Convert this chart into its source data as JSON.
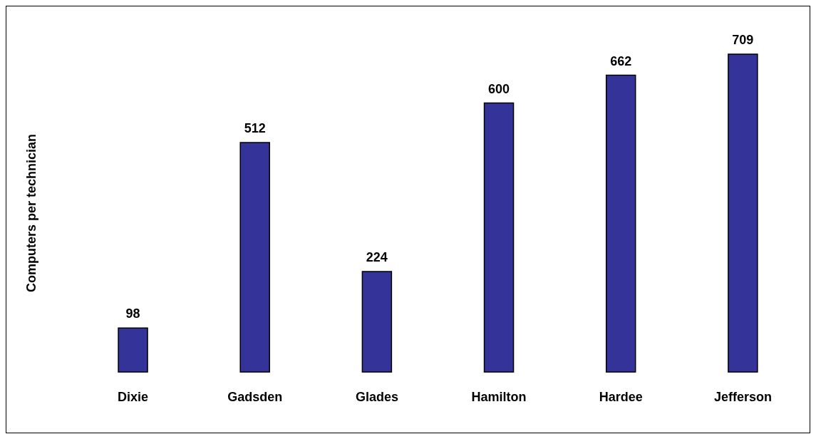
{
  "chart_data": {
    "type": "bar",
    "ylabel": "Computers per technician",
    "categories": [
      "Dixie",
      "Gadsden",
      "Glades",
      "Hamilton",
      "Hardee",
      "Jefferson"
    ],
    "values": [
      98,
      512,
      224,
      600,
      662,
      709
    ],
    "color": "#333399",
    "data_labels": true,
    "grid": false,
    "legend": false
  }
}
